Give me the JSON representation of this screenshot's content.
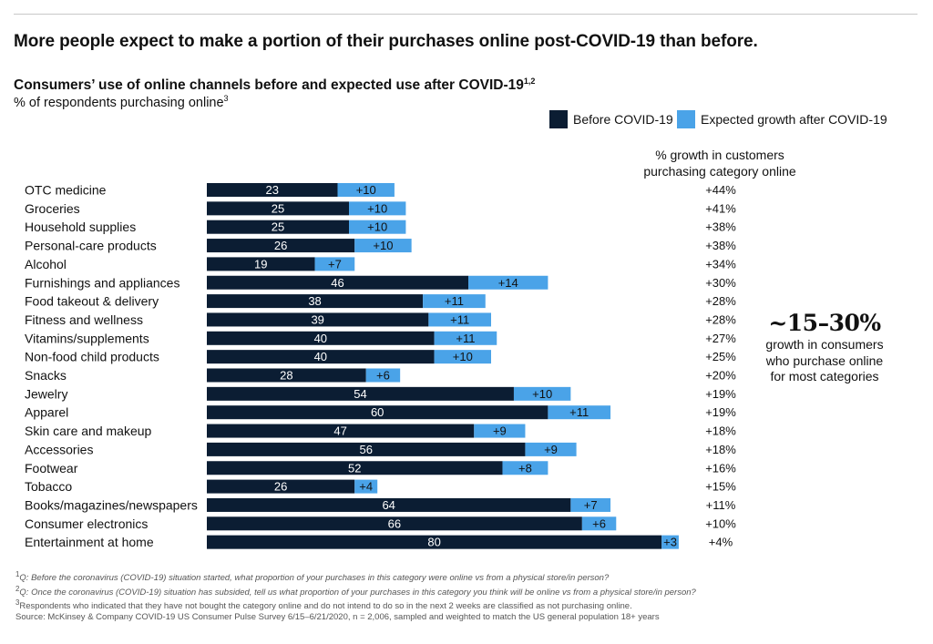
{
  "headline": "More people expect to make a portion of their purchases online post-COVID-19 than before.",
  "title": "Consumers’ use of online channels before and expected use after COVID-19",
  "title_sup": "1,2",
  "subtitle": "% of respondents purchasing online",
  "subtitle_sup": "3",
  "legend": {
    "before_label": "Before COVID-19",
    "after_label": "Expected growth after COVID-19"
  },
  "colors": {
    "before": "#0b1d33",
    "after": "#4aa3e8"
  },
  "growth_header": [
    "% growth in customers",
    "purchasing category online"
  ],
  "callout": {
    "big": "~15–30%",
    "lines": [
      "growth in consumers",
      "who purchase online",
      "for most categories"
    ]
  },
  "chart_data": {
    "type": "bar",
    "orientation": "horizontal",
    "stacked": true,
    "categories": [
      "OTC medicine",
      "Groceries",
      "Household supplies",
      "Personal-care products",
      "Alcohol",
      "Furnishings and appliances",
      "Food takeout & delivery",
      "Fitness and wellness",
      "Vitamins/supplements",
      "Non-food child products",
      "Snacks",
      "Jewelry",
      "Apparel",
      "Skin care and makeup",
      "Accessories",
      "Footwear",
      "Tobacco",
      "Books/magazines/newspapers",
      "Consumer electronics",
      "Entertainment at home"
    ],
    "series": [
      {
        "name": "Before COVID-19",
        "values": [
          23,
          25,
          25,
          26,
          19,
          46,
          38,
          39,
          40,
          40,
          28,
          54,
          60,
          47,
          56,
          52,
          26,
          64,
          66,
          80
        ]
      },
      {
        "name": "Expected growth after COVID-19",
        "values": [
          10,
          10,
          10,
          10,
          7,
          14,
          11,
          11,
          11,
          10,
          6,
          10,
          11,
          9,
          9,
          8,
          4,
          7,
          6,
          3
        ]
      }
    ],
    "growth_labels": [
      "+44%",
      "+41%",
      "+38%",
      "+38%",
      "+34%",
      "+30%",
      "+28%",
      "+28%",
      "+27%",
      "+25%",
      "+20%",
      "+19%",
      "+19%",
      "+18%",
      "+18%",
      "+16%",
      "+15%",
      "+11%",
      "+10%",
      "+4%"
    ],
    "xlim": [
      0,
      100
    ],
    "grid": false,
    "legend_position": "top-right"
  },
  "footnotes": [
    {
      "sup": "1",
      "text": "Q: Before the coronavirus (COVID-19) situation started, what proportion of your purchases in this category were online vs from a physical store/in person?",
      "italic": true
    },
    {
      "sup": "2",
      "text": "Q: Once the coronavirus (COVID-19) situation has subsided, tell us what proportion of your purchases in this category you think will be online vs from a physical store/in person?",
      "italic": true
    },
    {
      "sup": "3",
      "text": "Respondents who indicated that they have not bought the category online and do not intend to do so in the next 2 weeks are classified as not purchasing online.",
      "italic": false
    },
    {
      "sup": "",
      "text": " Source: McKinsey & Company COVID-19 US Consumer Pulse Survey 6/15–6/21/2020, n = 2,006, sampled and weighted to match the US general population 18+ years",
      "italic": false
    }
  ]
}
